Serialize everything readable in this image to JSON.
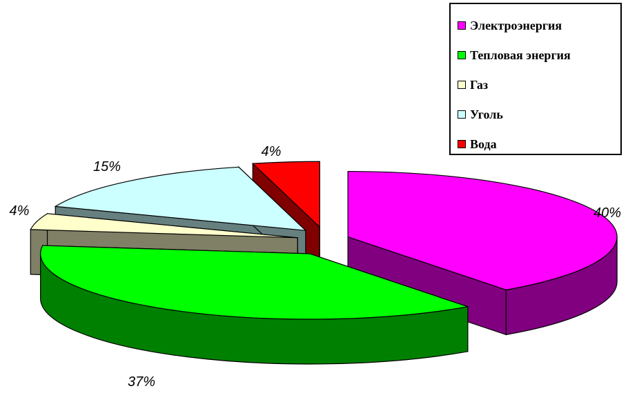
{
  "chart_data": {
    "type": "pie",
    "three_d": true,
    "exploded": true,
    "legend_position": "top-right",
    "slices": [
      {
        "name": "Электроэнергия",
        "value": 40,
        "label": "40%",
        "color": "#ff00ff",
        "side_color": "#800080"
      },
      {
        "name": "Тепловая энергия",
        "value": 37,
        "label": "37%",
        "color": "#00ff00",
        "side_color": "#008000"
      },
      {
        "name": "Газ",
        "value": 4,
        "label": "4%",
        "color": "#ffffcc",
        "side_color": "#808066"
      },
      {
        "name": "Уголь",
        "value": 15,
        "label": "15%",
        "color": "#ccffff",
        "side_color": "#668080"
      },
      {
        "name": "Вода",
        "value": 4,
        "label": "4%",
        "color": "#ff0000",
        "side_color": "#800000"
      }
    ]
  }
}
